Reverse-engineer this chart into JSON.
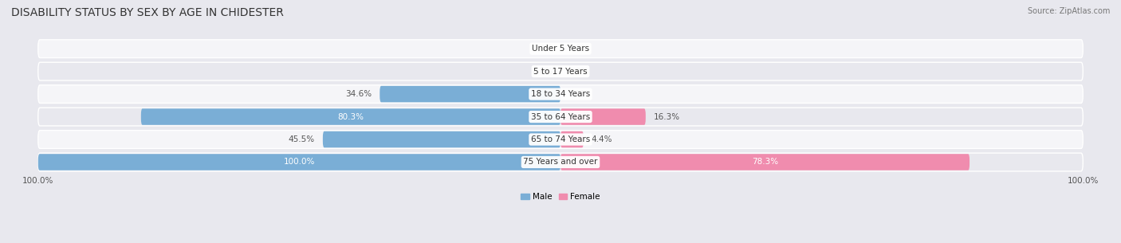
{
  "title": "DISABILITY STATUS BY SEX BY AGE IN CHIDESTER",
  "source": "Source: ZipAtlas.com",
  "categories": [
    "Under 5 Years",
    "5 to 17 Years",
    "18 to 34 Years",
    "35 to 64 Years",
    "65 to 74 Years",
    "75 Years and over"
  ],
  "male_values": [
    0.0,
    0.0,
    34.6,
    80.3,
    45.5,
    100.0
  ],
  "female_values": [
    0.0,
    0.0,
    0.0,
    16.3,
    4.4,
    78.3
  ],
  "male_color": "#7aaed6",
  "female_color": "#f08cae",
  "male_label": "Male",
  "female_label": "Female",
  "bg_color": "#e8e8ee",
  "row_colors": [
    "#f5f5f8",
    "#e8e8ee",
    "#f5f5f8",
    "#e8e8ee",
    "#f5f5f8",
    "#e8e8ee"
  ],
  "xlim": 100.0,
  "title_fontsize": 10,
  "label_fontsize": 7.5,
  "tick_fontsize": 7.5,
  "value_label_color_inside": "white",
  "value_label_color_outside": "#555555"
}
